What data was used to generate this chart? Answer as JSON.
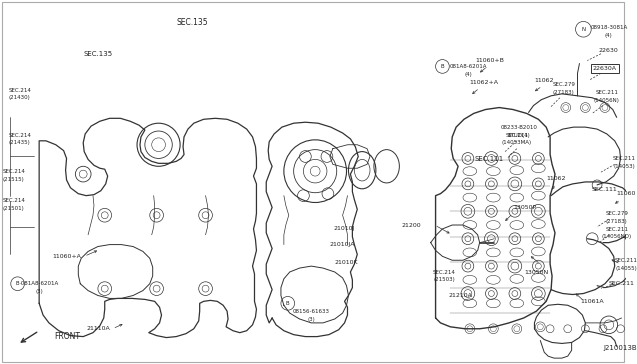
{
  "bg_color": "#ffffff",
  "line_color": "#333333",
  "text_color": "#222222",
  "fig_width": 6.4,
  "fig_height": 3.72,
  "dpi": 100
}
